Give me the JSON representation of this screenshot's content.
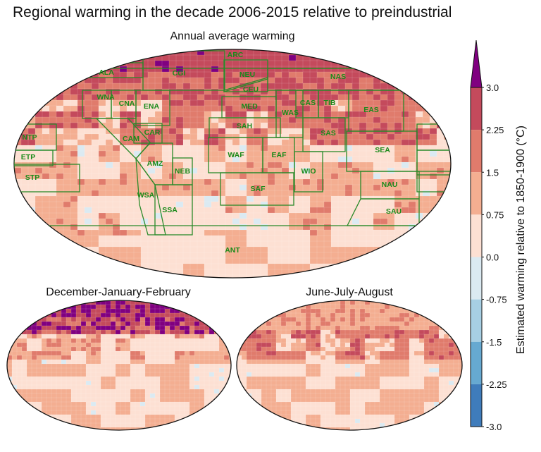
{
  "title": "Regional warming in the decade 2006-2015 relative to preindustrial",
  "panels": {
    "annual": {
      "title": "Annual average warming"
    },
    "djf": {
      "title": "December-January-February"
    },
    "jja": {
      "title": "June-July-August"
    }
  },
  "regions": [
    "ARC",
    "ALA",
    "CGI",
    "NEU",
    "CEU",
    "NAS",
    "WNA",
    "CNA",
    "ENA",
    "MED",
    "WAS",
    "CAS",
    "TIB",
    "EAS",
    "SAH",
    "SAS",
    "CAR",
    "CAM",
    "SEA",
    "WAF",
    "EAF",
    "AMZ",
    "NEB",
    "WIO",
    "NAU",
    "SAF",
    "WSA",
    "SSA",
    "SAU",
    "ANT",
    "NTP",
    "ETP",
    "STP"
  ],
  "region_outline_color": "#2a8a2a",
  "colorbar": {
    "label": "Estimated warming relative to 1850-1900 (°C)",
    "ticks": [
      "3.0",
      "2.25",
      "1.5",
      "0.75",
      "0.0",
      "-0.75",
      "-1.5",
      "-2.25",
      "-3.0"
    ],
    "colors": [
      "#c44a5c",
      "#e07b6c",
      "#f4ae91",
      "#fde0d3",
      "#dbeaf2",
      "#a7cfe4",
      "#66a9d1",
      "#3f7cbb"
    ],
    "extend_color": "#800080"
  }
}
